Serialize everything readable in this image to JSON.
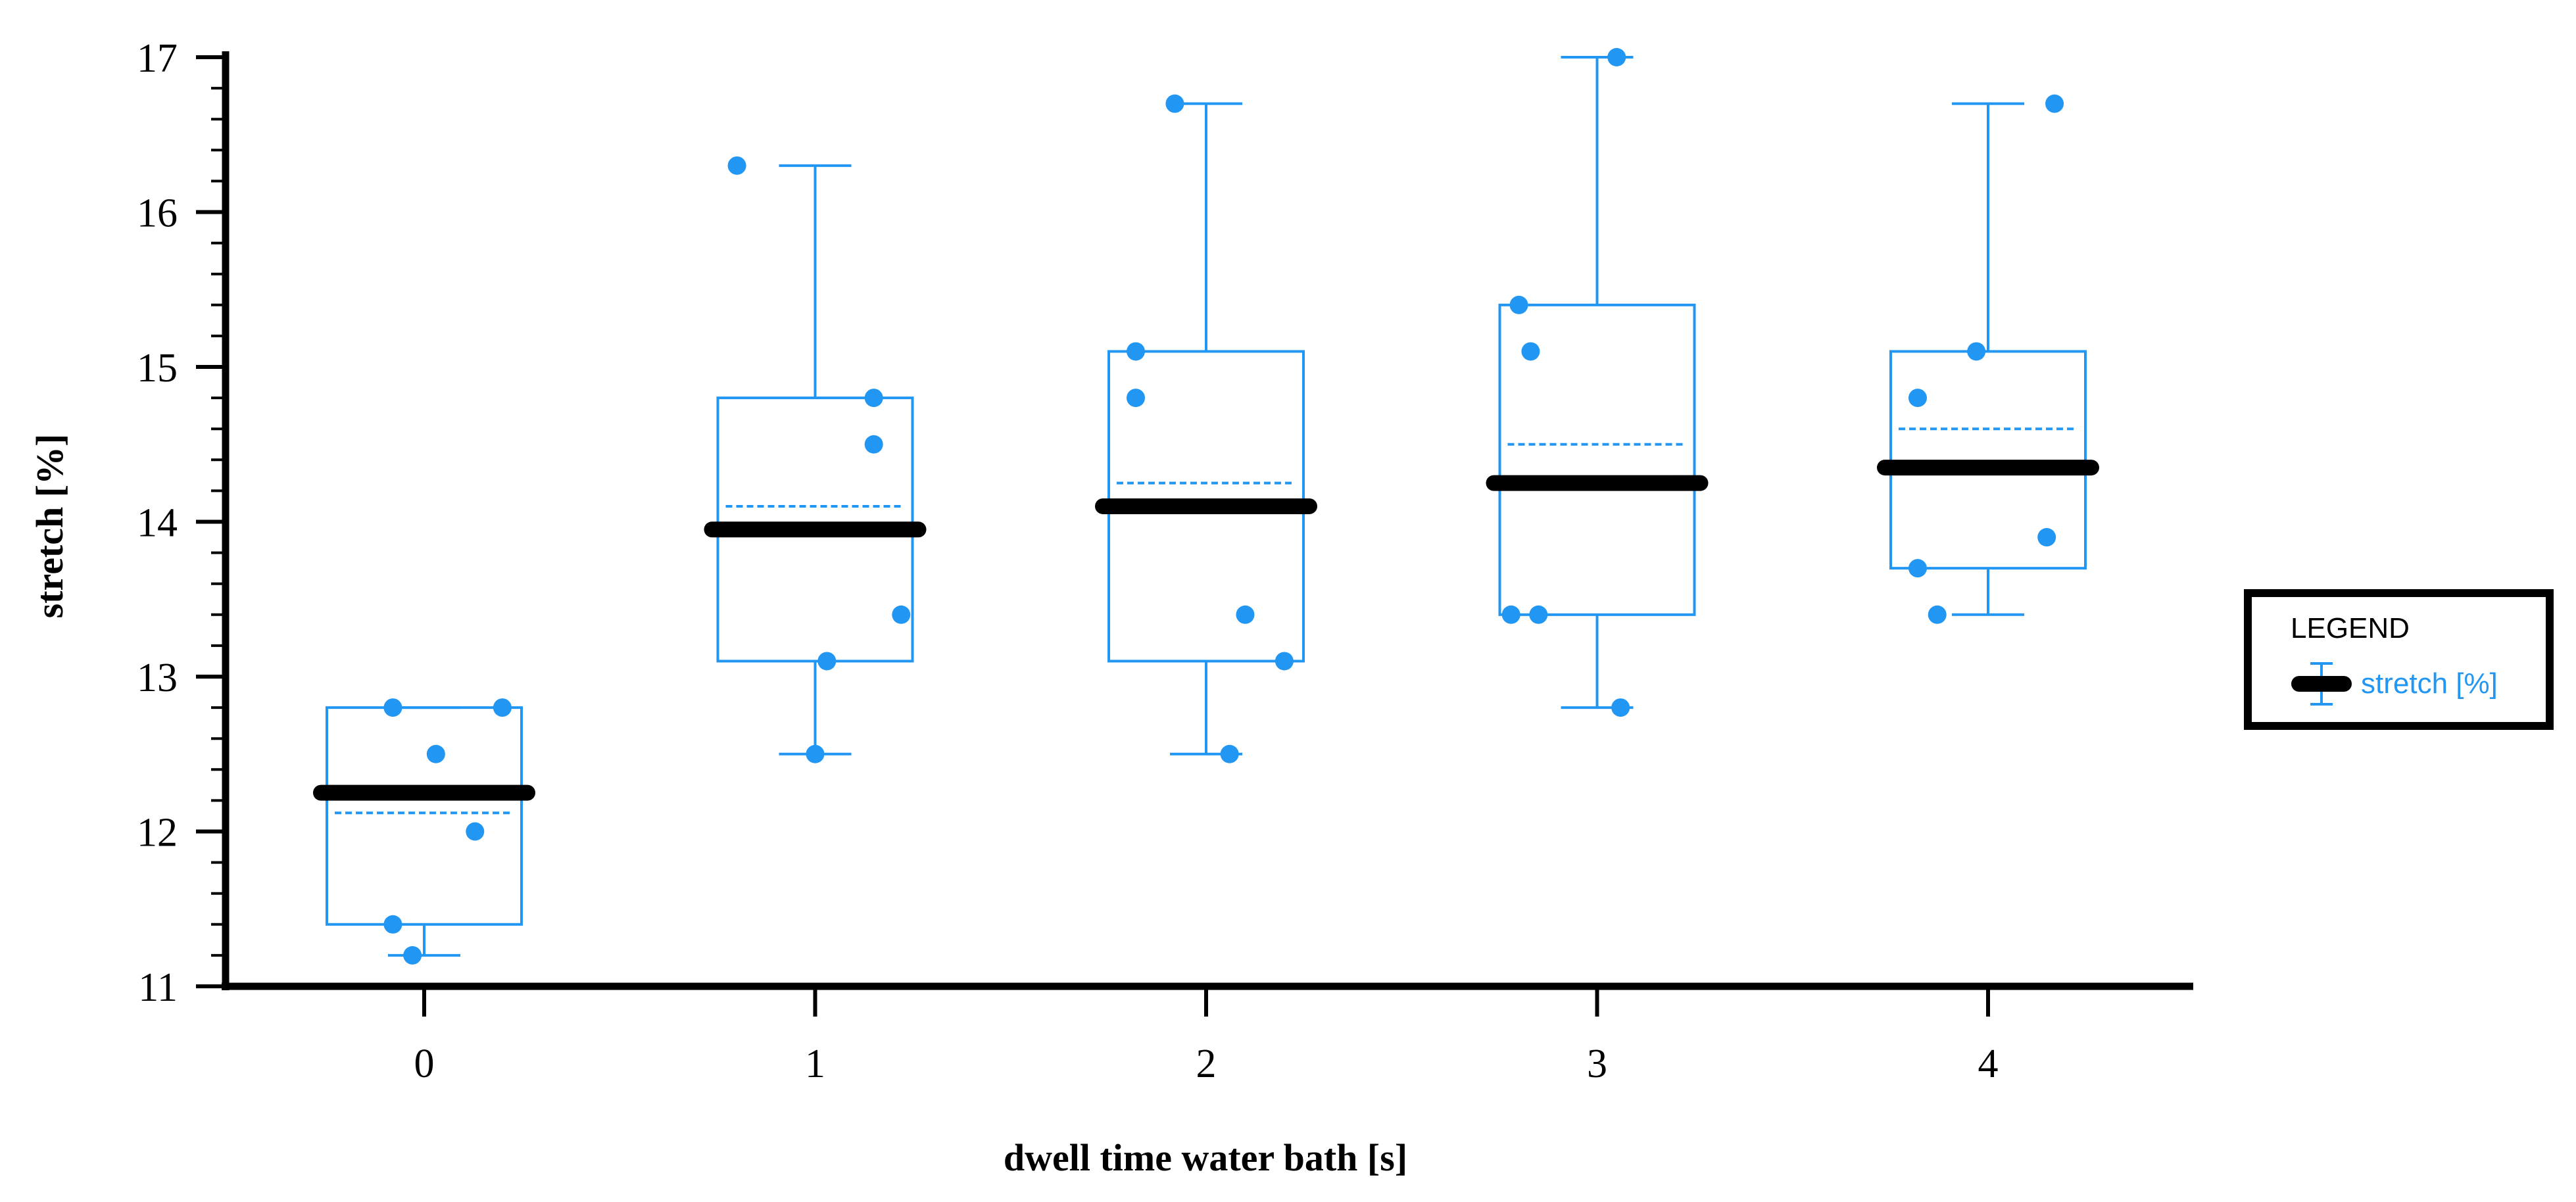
{
  "chart_data": {
    "type": "box",
    "xlabel": "dwell time water bath [s]",
    "ylabel": "stretch [%]",
    "ylim": [
      11,
      17
    ],
    "y_ticks": [
      "11",
      "12",
      "13",
      "14",
      "15",
      "16",
      "17"
    ],
    "categories": [
      "0",
      "1",
      "2",
      "3",
      "4"
    ],
    "series": [
      {
        "name": "stretch [%]",
        "color": "#2196f3",
        "median_color": "#000000",
        "boxes": [
          {
            "category": "0",
            "whisker_low": 11.2,
            "q1": 11.4,
            "median": 12.25,
            "mean": 12.12,
            "q3": 12.8,
            "whisker_high": 12.8,
            "points": [
              [
                -0.08,
                12.8
              ],
              [
                0.2,
                12.8
              ],
              [
                0.03,
                12.5
              ],
              [
                0.13,
                12.0
              ],
              [
                -0.08,
                11.4
              ],
              [
                -0.03,
                11.2
              ]
            ]
          },
          {
            "category": "1",
            "whisker_low": 12.5,
            "q1": 13.1,
            "median": 13.95,
            "mean": 14.1,
            "q3": 14.8,
            "whisker_high": 16.3,
            "points": [
              [
                -0.2,
                16.3
              ],
              [
                0.15,
                14.8
              ],
              [
                0.15,
                14.5
              ],
              [
                0.22,
                13.4
              ],
              [
                0.03,
                13.1
              ],
              [
                0.0,
                12.5
              ]
            ]
          },
          {
            "category": "2",
            "whisker_low": 12.5,
            "q1": 13.1,
            "median": 14.1,
            "mean": 14.25,
            "q3": 15.1,
            "whisker_high": 16.7,
            "points": [
              [
                -0.08,
                16.7
              ],
              [
                -0.18,
                15.1
              ],
              [
                -0.18,
                14.8
              ],
              [
                0.1,
                13.4
              ],
              [
                0.2,
                13.1
              ],
              [
                0.06,
                12.5
              ]
            ]
          },
          {
            "category": "3",
            "whisker_low": 12.8,
            "q1": 13.4,
            "median": 14.25,
            "mean": 14.5,
            "q3": 15.4,
            "whisker_high": 17.0,
            "points": [
              [
                0.05,
                17.0
              ],
              [
                -0.2,
                15.4
              ],
              [
                -0.17,
                15.1
              ],
              [
                -0.22,
                13.4
              ],
              [
                -0.15,
                13.4
              ],
              [
                0.06,
                12.8
              ]
            ]
          },
          {
            "category": "4",
            "whisker_low": 13.4,
            "q1": 13.7,
            "median": 14.35,
            "mean": 14.6,
            "q3": 15.1,
            "whisker_high": 16.7,
            "points": [
              [
                0.17,
                16.7
              ],
              [
                -0.03,
                15.1
              ],
              [
                -0.18,
                14.8
              ],
              [
                0.15,
                13.9
              ],
              [
                -0.18,
                13.7
              ],
              [
                -0.13,
                13.4
              ]
            ]
          }
        ]
      }
    ],
    "legend": {
      "title": "LEGEND",
      "entries": [
        "stretch [%]"
      ],
      "placement": "right"
    }
  }
}
